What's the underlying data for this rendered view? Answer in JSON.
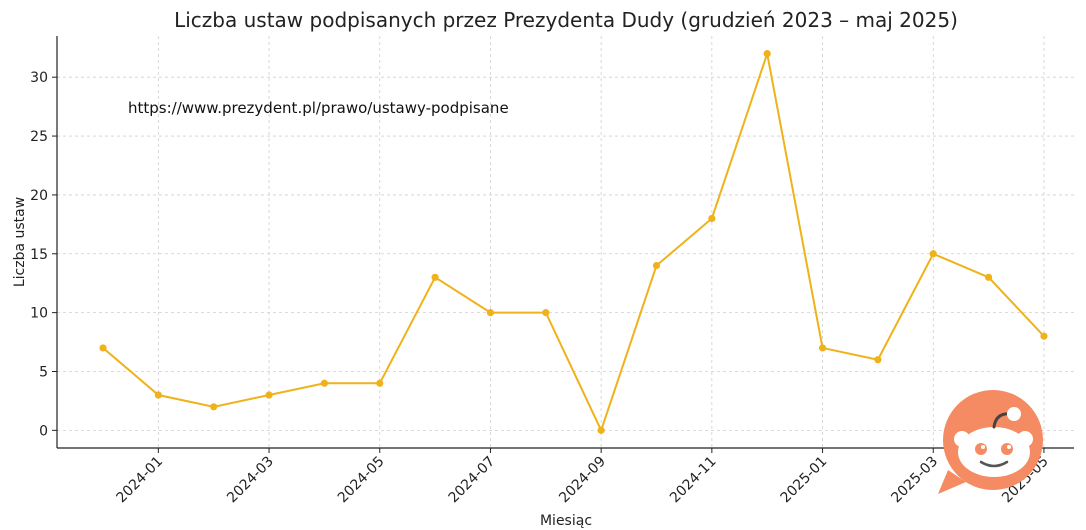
{
  "chart_data": {
    "type": "line",
    "title": "Liczba ustaw podpisanych przez Prezydenta Dudy (grudzień 2023 – maj 2025)",
    "xlabel": "Miesiąc",
    "ylabel": "Liczba ustaw",
    "annotation": "https://www.prezydent.pl/prawo/ustawy-podpisane",
    "x": [
      "2023-12",
      "2024-01",
      "2024-02",
      "2024-03",
      "2024-04",
      "2024-05",
      "2024-06",
      "2024-07",
      "2024-08",
      "2024-09",
      "2024-10",
      "2024-11",
      "2024-12",
      "2025-01",
      "2025-02",
      "2025-03",
      "2025-04",
      "2025-05"
    ],
    "series": [
      {
        "values": [
          7,
          3,
          2,
          3,
          4,
          4,
          13,
          10,
          10,
          0,
          14,
          18,
          32,
          7,
          6,
          15,
          13,
          8
        ],
        "color": "#f0b21a"
      }
    ],
    "x_ticks": [
      "2024-01",
      "2024-03",
      "2024-05",
      "2024-07",
      "2024-09",
      "2024-11",
      "2025-01",
      "2025-03",
      "2025-05"
    ],
    "y_ticks": [
      0,
      5,
      10,
      15,
      20,
      25,
      30
    ],
    "ylim": [
      -1.5,
      33.5
    ],
    "grid": true
  },
  "watermark": {
    "icon": "reddit-icon",
    "color": "#f58b63"
  }
}
